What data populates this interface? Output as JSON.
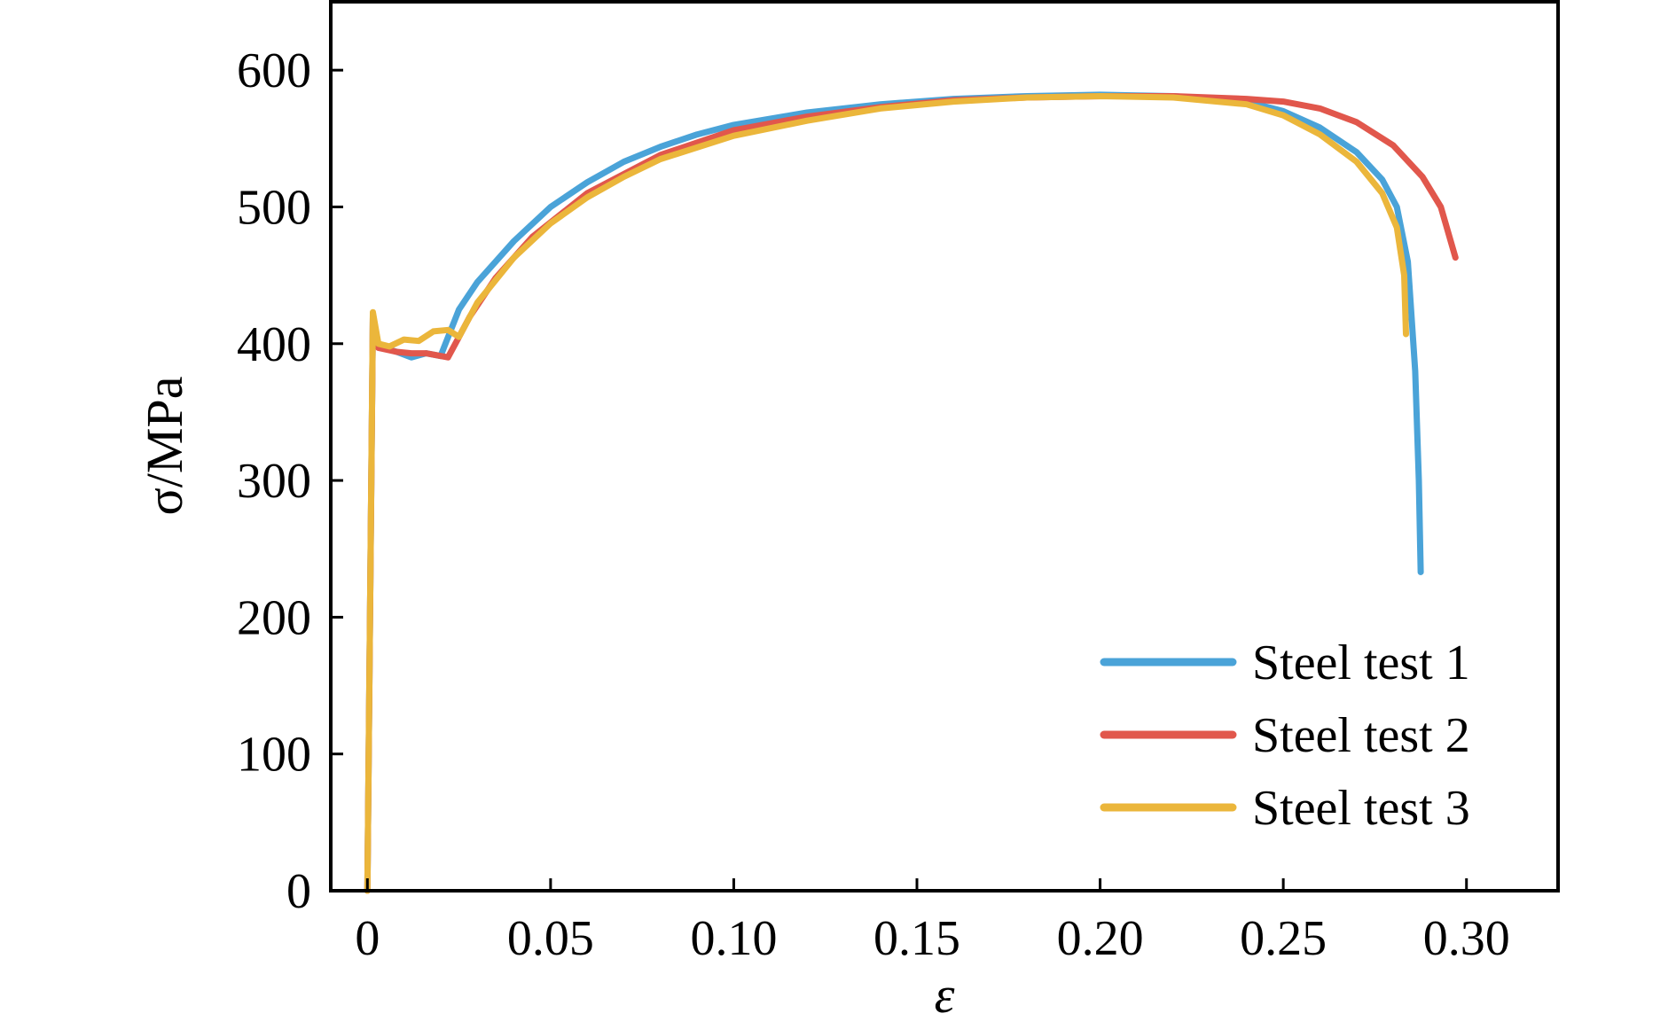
{
  "chart_data": {
    "type": "line",
    "xlabel": "ε",
    "ylabel": "σ/MPa",
    "xlim": [
      -0.01,
      0.325
    ],
    "ylim": [
      0,
      650
    ],
    "x_ticks": [
      0,
      0.05,
      0.1,
      0.15,
      0.2,
      0.25,
      0.3
    ],
    "x_tick_labels": [
      "0",
      "0.05",
      "0.10",
      "0.15",
      "0.20",
      "0.25",
      "0.30"
    ],
    "y_ticks": [
      0,
      100,
      200,
      300,
      400,
      500,
      600
    ],
    "y_tick_labels": [
      "0",
      "100",
      "200",
      "300",
      "400",
      "500",
      "600"
    ],
    "grid": false,
    "legend_position": "bottom-right",
    "series": [
      {
        "name": "Steel test 1",
        "color": "#4aa3d8",
        "points": [
          [
            0,
            0
          ],
          [
            0.0015,
            420
          ],
          [
            0.003,
            398
          ],
          [
            0.008,
            394
          ],
          [
            0.012,
            390
          ],
          [
            0.016,
            393
          ],
          [
            0.02,
            391
          ],
          [
            0.021,
            398
          ],
          [
            0.025,
            425
          ],
          [
            0.03,
            445
          ],
          [
            0.04,
            475
          ],
          [
            0.05,
            500
          ],
          [
            0.06,
            518
          ],
          [
            0.07,
            533
          ],
          [
            0.08,
            544
          ],
          [
            0.09,
            553
          ],
          [
            0.1,
            560
          ],
          [
            0.12,
            569
          ],
          [
            0.14,
            575
          ],
          [
            0.16,
            579
          ],
          [
            0.18,
            581
          ],
          [
            0.2,
            582
          ],
          [
            0.22,
            581
          ],
          [
            0.24,
            577
          ],
          [
            0.25,
            570
          ],
          [
            0.26,
            558
          ],
          [
            0.27,
            540
          ],
          [
            0.277,
            520
          ],
          [
            0.281,
            500
          ],
          [
            0.284,
            460
          ],
          [
            0.286,
            380
          ],
          [
            0.287,
            300
          ],
          [
            0.2875,
            233
          ]
        ]
      },
      {
        "name": "Steel test 2",
        "color": "#e1574c",
        "points": [
          [
            0,
            0
          ],
          [
            0.0015,
            420
          ],
          [
            0.003,
            397
          ],
          [
            0.008,
            394
          ],
          [
            0.012,
            393
          ],
          [
            0.016,
            393
          ],
          [
            0.022,
            390
          ],
          [
            0.024,
            400
          ],
          [
            0.028,
            420
          ],
          [
            0.035,
            448
          ],
          [
            0.045,
            478
          ],
          [
            0.06,
            510
          ],
          [
            0.08,
            538
          ],
          [
            0.1,
            556
          ],
          [
            0.12,
            566
          ],
          [
            0.14,
            573
          ],
          [
            0.16,
            578
          ],
          [
            0.18,
            580
          ],
          [
            0.2,
            581
          ],
          [
            0.22,
            581
          ],
          [
            0.24,
            579
          ],
          [
            0.25,
            577
          ],
          [
            0.26,
            572
          ],
          [
            0.27,
            562
          ],
          [
            0.28,
            545
          ],
          [
            0.288,
            522
          ],
          [
            0.293,
            500
          ],
          [
            0.297,
            463
          ]
        ]
      },
      {
        "name": "Steel test 3",
        "color": "#ebb63b",
        "points": [
          [
            0,
            0
          ],
          [
            0.0015,
            423
          ],
          [
            0.003,
            400
          ],
          [
            0.006,
            398
          ],
          [
            0.01,
            403
          ],
          [
            0.014,
            402
          ],
          [
            0.018,
            409
          ],
          [
            0.022,
            410
          ],
          [
            0.025,
            405
          ],
          [
            0.027,
            415
          ],
          [
            0.03,
            430
          ],
          [
            0.04,
            463
          ],
          [
            0.05,
            488
          ],
          [
            0.06,
            507
          ],
          [
            0.07,
            522
          ],
          [
            0.08,
            535
          ],
          [
            0.1,
            552
          ],
          [
            0.12,
            563
          ],
          [
            0.14,
            572
          ],
          [
            0.16,
            577
          ],
          [
            0.18,
            580
          ],
          [
            0.2,
            581
          ],
          [
            0.22,
            580
          ],
          [
            0.24,
            575
          ],
          [
            0.25,
            567
          ],
          [
            0.26,
            553
          ],
          [
            0.27,
            533
          ],
          [
            0.277,
            510
          ],
          [
            0.281,
            485
          ],
          [
            0.283,
            450
          ],
          [
            0.2835,
            407
          ]
        ]
      }
    ]
  }
}
